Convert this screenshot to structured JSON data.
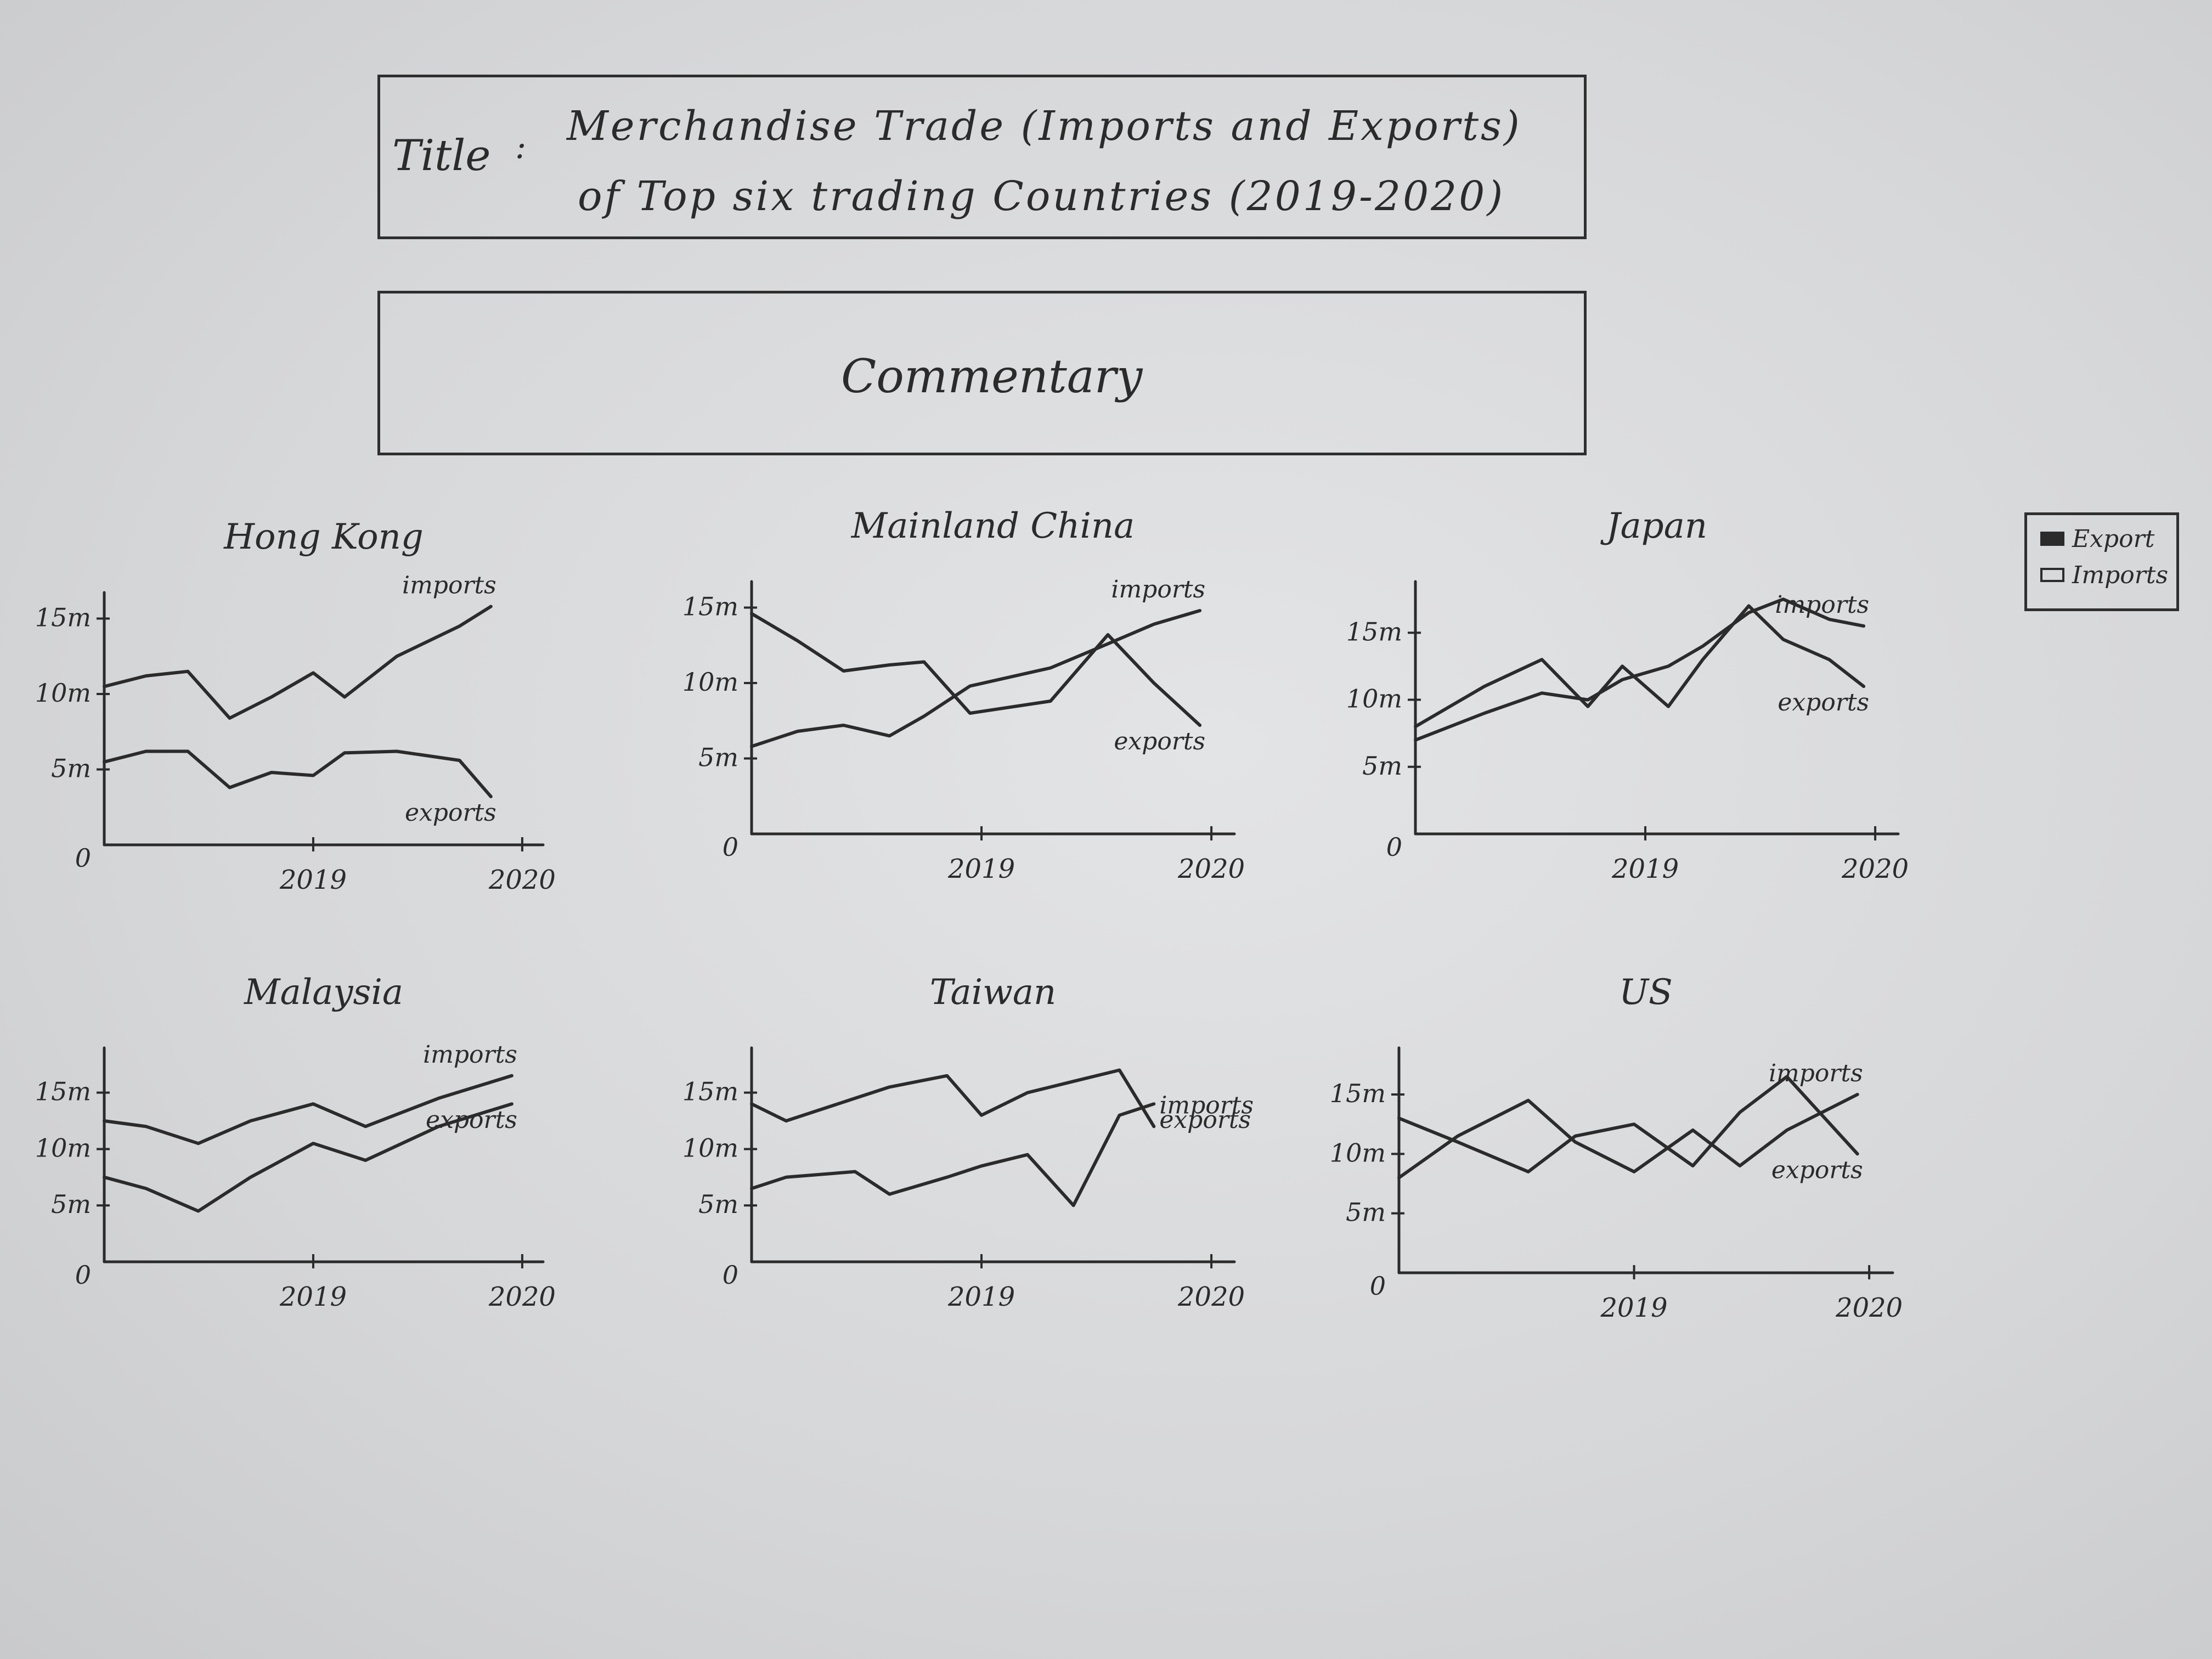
{
  "header": {
    "label": "Title",
    "separator": ":",
    "title_line1": "Merchandise Trade (Imports and Exports)",
    "title_line2": "of Top six trading Countries (2019-2020)"
  },
  "commentary": "Commentary",
  "legend": {
    "items": [
      {
        "label": "Export",
        "fill": "#2b2b2b"
      },
      {
        "label": "Imports",
        "fill": "none"
      }
    ]
  },
  "colors": {
    "ink": "#2b2b2b",
    "paper": "#d7d8da"
  },
  "chart_data": [
    {
      "type": "line",
      "title": "Hong Kong",
      "ytick_labels": [
        "0",
        "5m",
        "10m",
        "15m"
      ],
      "yticks": [
        0,
        5,
        10,
        15
      ],
      "xtick_labels": [
        "2019",
        "2020"
      ],
      "xticks": [
        2019,
        2020
      ],
      "x": [
        2018.0,
        2018.2,
        2018.4,
        2018.6,
        2018.8,
        2019.0,
        2019.15,
        2019.4,
        2019.7,
        2019.85
      ],
      "ylim": [
        0,
        16
      ],
      "xlim": [
        2018.0,
        2020.1
      ],
      "series": [
        {
          "name": "imports",
          "values": [
            10.5,
            11.2,
            11.5,
            8.4,
            9.8,
            11.4,
            9.8,
            12.5,
            14.5,
            15.8
          ]
        },
        {
          "name": "exports",
          "values": [
            5.5,
            6.2,
            6.2,
            3.8,
            4.8,
            4.6,
            6.1,
            6.2,
            5.6,
            3.2
          ]
        }
      ]
    },
    {
      "type": "line",
      "title": "Mainland China",
      "ytick_labels": [
        "0",
        "5m",
        "10m",
        "15m"
      ],
      "yticks": [
        0,
        5,
        10,
        15
      ],
      "xtick_labels": [
        "2019",
        "2020"
      ],
      "xticks": [
        2019,
        2020
      ],
      "x": [
        2018.0,
        2018.2,
        2018.4,
        2018.6,
        2018.75,
        2018.95,
        2019.3,
        2019.55,
        2019.75,
        2019.95
      ],
      "ylim": [
        0,
        16
      ],
      "xlim": [
        2018.0,
        2020.1
      ],
      "series": [
        {
          "name": "imports",
          "values": [
            5.8,
            6.8,
            7.2,
            6.5,
            7.8,
            9.8,
            11.0,
            12.6,
            13.9,
            14.8
          ]
        },
        {
          "name": "exports",
          "values": [
            14.6,
            12.8,
            10.8,
            11.2,
            11.4,
            8.0,
            8.8,
            13.2,
            10.0,
            7.2
          ]
        }
      ]
    },
    {
      "type": "line",
      "title": "Japan",
      "ytick_labels": [
        "0",
        "5m",
        "10m",
        "15m"
      ],
      "yticks": [
        0,
        5,
        10,
        15
      ],
      "xtick_labels": [
        "2019",
        "2020"
      ],
      "xticks": [
        2019,
        2020
      ],
      "x": [
        2018.0,
        2018.3,
        2018.55,
        2018.75,
        2018.9,
        2019.1,
        2019.25,
        2019.45,
        2019.6,
        2019.8,
        2019.95
      ],
      "ylim": [
        0,
        18
      ],
      "xlim": [
        2018.0,
        2020.1
      ],
      "series": [
        {
          "name": "imports",
          "values": [
            7.0,
            9.0,
            10.5,
            10.0,
            11.5,
            12.5,
            14.0,
            16.5,
            17.5,
            16.0,
            15.5
          ]
        },
        {
          "name": "exports",
          "values": [
            8.0,
            11.0,
            13.0,
            9.5,
            12.5,
            9.5,
            13.0,
            17.0,
            14.5,
            13.0,
            11.0
          ]
        }
      ]
    },
    {
      "type": "line",
      "title": "Malaysia",
      "ytick_labels": [
        "0",
        "5m",
        "10m",
        "15m"
      ],
      "yticks": [
        0,
        5,
        10,
        15
      ],
      "xtick_labels": [
        "2019",
        "2020"
      ],
      "xticks": [
        2019,
        2020
      ],
      "x": [
        2018.0,
        2018.2,
        2018.45,
        2018.7,
        2019.0,
        2019.25,
        2019.6,
        2019.95
      ],
      "ylim": [
        0,
        18
      ],
      "xlim": [
        2018.0,
        2020.1
      ],
      "series": [
        {
          "name": "imports",
          "values": [
            12.5,
            12.0,
            10.5,
            12.5,
            14.0,
            12.0,
            14.5,
            16.5
          ]
        },
        {
          "name": "exports",
          "values": [
            7.5,
            6.5,
            4.5,
            7.5,
            10.5,
            9.0,
            12.0,
            14.0
          ]
        }
      ]
    },
    {
      "type": "line",
      "title": "Taiwan",
      "ytick_labels": [
        "0",
        "5m",
        "10m",
        "15m"
      ],
      "yticks": [
        0,
        5,
        10,
        15
      ],
      "xtick_labels": [
        "2019",
        "2020"
      ],
      "xticks": [
        2019,
        2020
      ],
      "x": [
        2018.0,
        2018.15,
        2018.45,
        2018.6,
        2018.85,
        2019.0,
        2019.2,
        2019.4,
        2019.6,
        2019.75
      ],
      "ylim": [
        0,
        18
      ],
      "xlim": [
        2018.0,
        2020.1
      ],
      "series": [
        {
          "name": "imports",
          "values": [
            14.0,
            12.5,
            14.5,
            15.5,
            16.5,
            13.0,
            15.0,
            16.0,
            17.0,
            12.0
          ]
        },
        {
          "name": "exports",
          "values": [
            6.5,
            7.5,
            8.0,
            6.0,
            7.5,
            8.5,
            9.5,
            5.0,
            13.0,
            14.0
          ]
        }
      ]
    },
    {
      "type": "line",
      "title": "US",
      "ytick_labels": [
        "0",
        "5m",
        "10m",
        "15m"
      ],
      "yticks": [
        0,
        5,
        10,
        15
      ],
      "xtick_labels": [
        "2019",
        "2020"
      ],
      "xticks": [
        2019,
        2020
      ],
      "x": [
        2018.0,
        2018.25,
        2018.55,
        2018.75,
        2019.0,
        2019.25,
        2019.45,
        2019.65,
        2019.95
      ],
      "ylim": [
        0,
        18
      ],
      "xlim": [
        2018.0,
        2020.1
      ],
      "series": [
        {
          "name": "imports",
          "values": [
            8.0,
            11.5,
            14.5,
            11.0,
            8.5,
            12.0,
            9.0,
            12.0,
            15.0
          ]
        },
        {
          "name": "exports",
          "values": [
            13.0,
            11.0,
            8.5,
            11.5,
            12.5,
            9.0,
            13.5,
            16.5,
            10.0
          ]
        }
      ]
    }
  ]
}
